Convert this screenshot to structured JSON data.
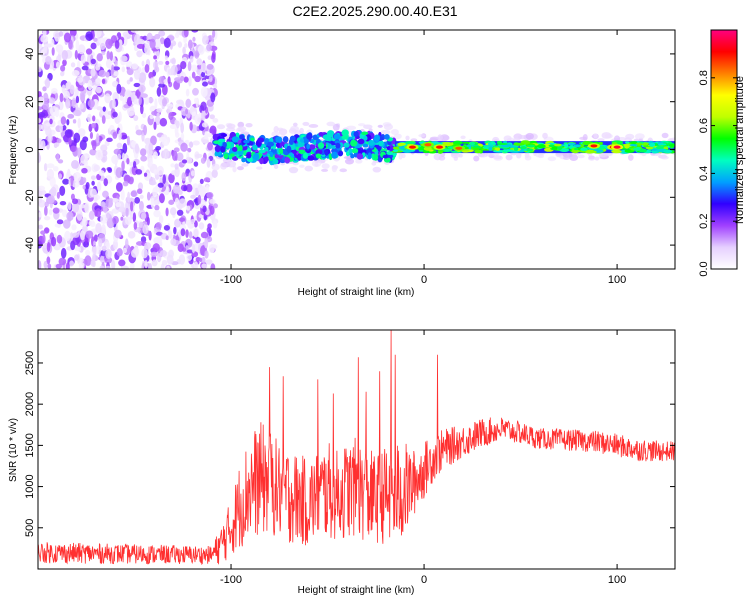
{
  "title": "C2E2.2025.290.00.40.E31",
  "chart_data": [
    {
      "id": "spectrogram",
      "type": "heatmap",
      "xlabel": "Height of straight line (km)",
      "ylabel": "Frequency (Hz)",
      "xlim": [
        -200,
        130
      ],
      "ylim": [
        -50,
        50
      ],
      "xticks": [
        -100,
        0,
        100
      ],
      "xtick_labels": [
        "-100",
        "0",
        "100"
      ],
      "yticks": [
        -40,
        -20,
        0,
        20,
        40
      ],
      "ytick_labels": [
        "-40",
        "-20",
        "0",
        "20",
        "40"
      ],
      "colorbar": {
        "label": "Normalized spectral amplitude",
        "range": [
          0,
          1
        ],
        "ticks": [
          0.0,
          0.2,
          0.4,
          0.6,
          0.8
        ],
        "tick_labels": [
          "0.0",
          "0.2",
          "0.4",
          "0.6",
          "0.8"
        ],
        "colors": [
          "#ffffff",
          "#e6d0ff",
          "#a040ff",
          "#3000ff",
          "#00a0ff",
          "#00ffc0",
          "#00ff00",
          "#c0ff00",
          "#ffff00",
          "#ff8000",
          "#ff0000",
          "#ff0080"
        ]
      },
      "regions": [
        {
          "name": "noise",
          "x_range": [
            -200,
            -108
          ],
          "f_range": [
            -50,
            50
          ],
          "amplitude": [
            0.0,
            0.2
          ]
        },
        {
          "name": "onset",
          "x_range": [
            -108,
            -15
          ],
          "f_center": 1,
          "f_halfwidth": 5,
          "amplitude": [
            0.2,
            0.5
          ]
        },
        {
          "name": "stable",
          "x_range": [
            -15,
            130
          ],
          "f_center": 1,
          "f_halfwidth": 2.5,
          "amplitude": [
            0.3,
            0.95
          ]
        }
      ],
      "peaks": [
        {
          "x": -6,
          "f": 1,
          "amplitude": 0.9
        },
        {
          "x": 2,
          "f": 2,
          "amplitude": 0.85
        },
        {
          "x": 8,
          "f": 1,
          "amplitude": 0.9
        },
        {
          "x": 18,
          "f": 0.5,
          "amplitude": 0.85
        },
        {
          "x": 88,
          "f": 1.5,
          "amplitude": 0.9
        },
        {
          "x": 98,
          "f": 1,
          "amplitude": 0.9
        },
        {
          "x": 100,
          "f": 1,
          "amplitude": 0.95
        }
      ]
    },
    {
      "id": "snr",
      "type": "line",
      "xlabel": "Height of straight line (km)",
      "ylabel": "SNR (10 * v/v)",
      "xlim": [
        -200,
        130
      ],
      "ylim": [
        0,
        2900
      ],
      "xticks": [
        -100,
        0,
        100
      ],
      "xtick_labels": [
        "-100",
        "0",
        "100"
      ],
      "yticks": [
        500,
        1000,
        1500,
        2000,
        2500
      ],
      "ytick_labels": [
        "500",
        "1000",
        "1500",
        "2000",
        "2500"
      ],
      "color": "#ff3030",
      "series": [
        {
          "name": "SNR",
          "x": [
            -200,
            -150,
            -110,
            -105,
            -100,
            -95,
            -90,
            -85,
            -80,
            -75,
            -70,
            -65,
            -60,
            -55,
            -50,
            -45,
            -40,
            -35,
            -30,
            -25,
            -20,
            -15,
            -10,
            -5,
            0,
            5,
            10,
            20,
            30,
            40,
            50,
            60,
            70,
            80,
            90,
            100,
            110,
            120,
            130
          ],
          "mean": [
            200,
            180,
            170,
            300,
            500,
            800,
            1000,
            1100,
            1050,
            950,
            900,
            850,
            800,
            900,
            950,
            900,
            950,
            1000,
            900,
            850,
            900,
            900,
            950,
            1050,
            1200,
            1350,
            1450,
            1550,
            1650,
            1700,
            1650,
            1580,
            1570,
            1560,
            1540,
            1500,
            1450,
            1430,
            1430
          ],
          "spread": [
            130,
            120,
            110,
            250,
            350,
            550,
            650,
            700,
            650,
            600,
            600,
            550,
            550,
            550,
            600,
            550,
            600,
            600,
            600,
            550,
            600,
            650,
            600,
            400,
            350,
            280,
            250,
            200,
            180,
            150,
            140,
            130,
            130,
            130,
            140,
            140,
            140,
            130,
            120
          ]
        }
      ],
      "spikes": [
        {
          "x": -80,
          "y": 2450
        },
        {
          "x": -73,
          "y": 2340
        },
        {
          "x": -55,
          "y": 2300
        },
        {
          "x": -47,
          "y": 2130
        },
        {
          "x": -34,
          "y": 2570
        },
        {
          "x": -30,
          "y": 2150
        },
        {
          "x": -23,
          "y": 2400
        },
        {
          "x": -17,
          "y": 2900
        },
        {
          "x": -15,
          "y": 2600
        },
        {
          "x": 7,
          "y": 2600
        }
      ]
    }
  ]
}
